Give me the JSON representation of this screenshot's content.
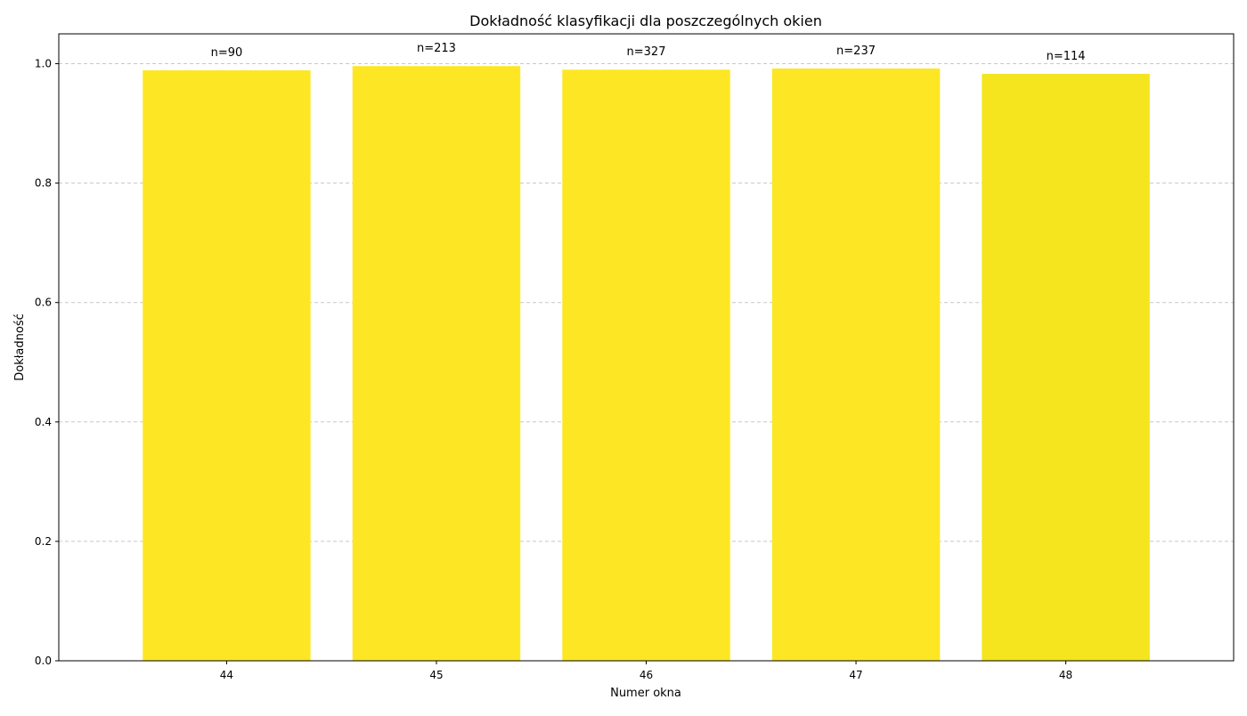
{
  "chart_data": {
    "type": "bar",
    "title": "Dokładność klasyfikacji dla poszczególnych okien",
    "xlabel": "Numer okna",
    "ylabel": "Dokładność",
    "categories": [
      "44",
      "45",
      "46",
      "47",
      "48"
    ],
    "values": [
      0.989,
      0.996,
      0.99,
      0.992,
      0.983
    ],
    "data_labels": [
      "n=90",
      "n=213",
      "n=327",
      "n=237",
      "n=114"
    ],
    "bar_colors": [
      "#fde725",
      "#fde725",
      "#fde725",
      "#fde725",
      "#f4e51e"
    ],
    "ylim": [
      0,
      1.05
    ],
    "yticks": [
      "0.0",
      "0.2",
      "0.4",
      "0.6",
      "0.8",
      "1.0"
    ],
    "ytick_values": [
      0,
      0.2,
      0.4,
      0.6,
      0.8,
      1.0
    ],
    "grid": "horizontal dashed",
    "legend": "none"
  }
}
